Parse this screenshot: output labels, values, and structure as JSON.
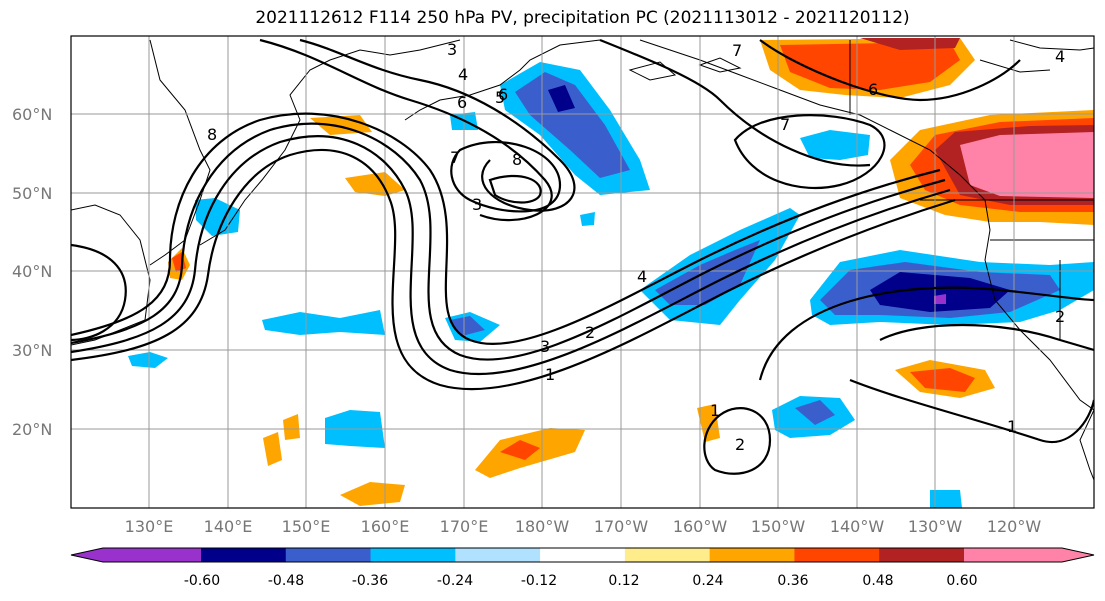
{
  "title": "2021112612 F114 250 hPa PV, precipitation PC (2021113012 - 2021120112)",
  "map": {
    "lat_labels": [
      "60°N",
      "50°N",
      "40°N",
      "30°N",
      "20°N"
    ],
    "lon_labels": [
      "130°E",
      "140°E",
      "150°E",
      "160°E",
      "170°E",
      "180°W",
      "170°W",
      "160°W",
      "150°W",
      "140°W",
      "130°W",
      "120°W"
    ],
    "contour_labels": [
      "1",
      "2",
      "3",
      "4",
      "5",
      "6",
      "7",
      "8",
      "3",
      "4",
      "6",
      "1",
      "1",
      "2",
      "2",
      "3",
      "4",
      "6",
      "7",
      "7",
      "8"
    ]
  },
  "colorbar": {
    "colors": [
      "#9932cc",
      "#00008b",
      "#3a5fcd",
      "#00bfff",
      "#b0e2ff",
      "#ffffff",
      "#ffed8b",
      "#ffa500",
      "#ff4500",
      "#b22222",
      "#ff83a8"
    ],
    "tick_labels": [
      "-0.60",
      "-0.48",
      "-0.36",
      "-0.24",
      "-0.12",
      "0.12",
      "0.24",
      "0.36",
      "0.48",
      "0.60"
    ]
  }
}
